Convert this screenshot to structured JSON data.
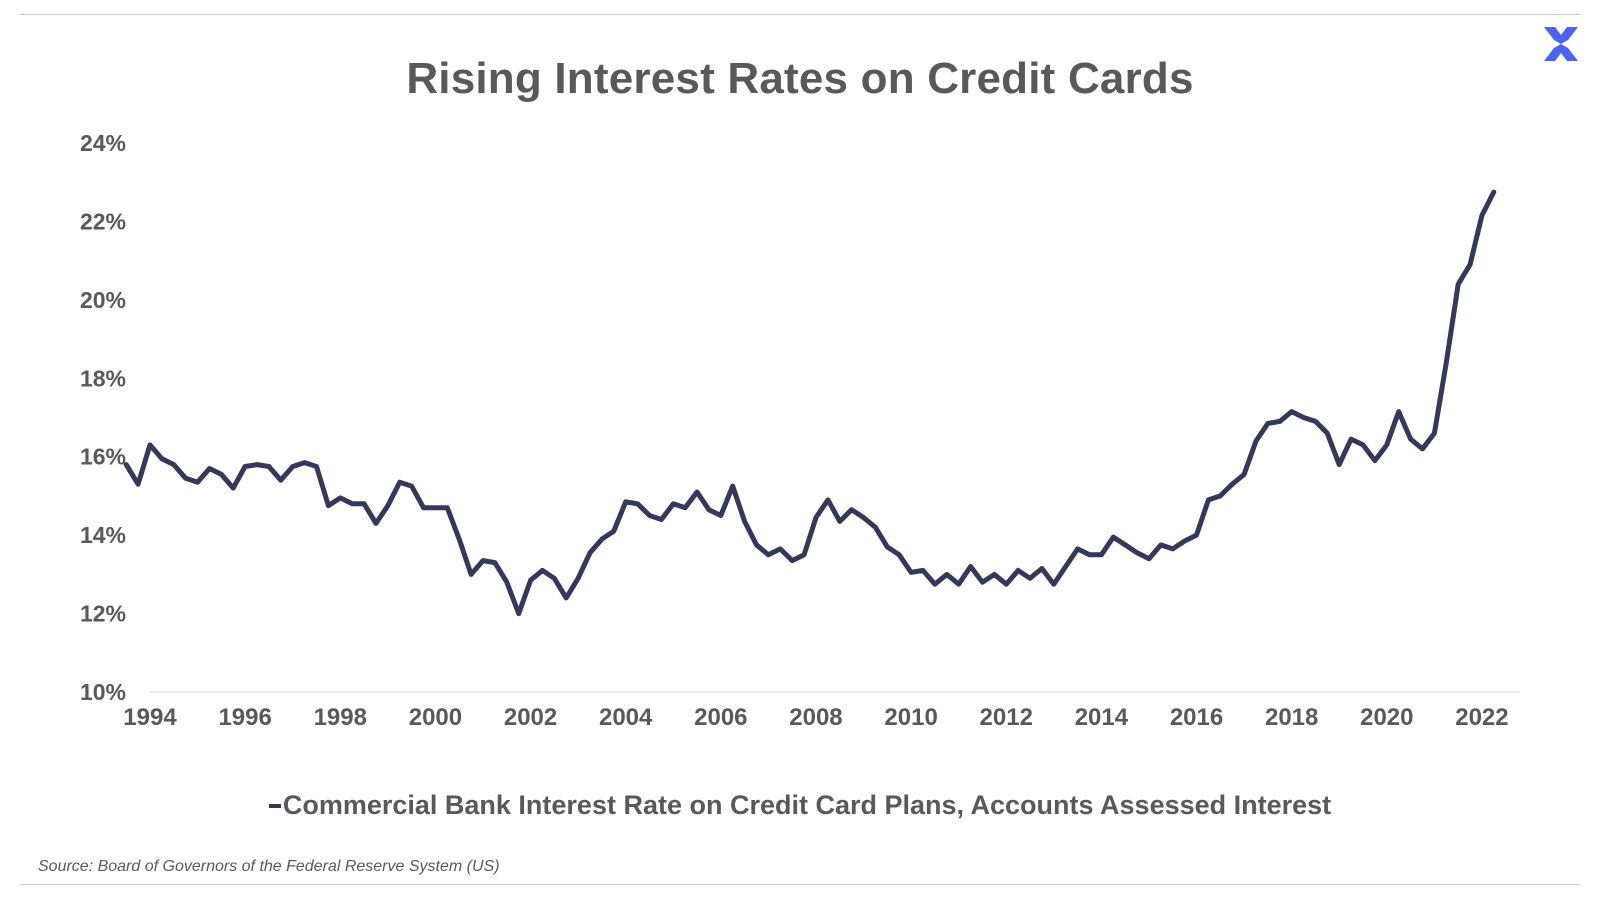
{
  "colors": {
    "line": "#33395a",
    "text": "#595959",
    "axis": "#d9d9d9",
    "brand": "#4a63f0"
  },
  "logo": {
    "icon": "brand-x-icon"
  },
  "chart_data": {
    "type": "line",
    "title": "Rising Interest Rates on Credit Cards",
    "xlabel": "",
    "ylabel": "",
    "ylim": [
      10,
      24
    ],
    "xlim": [
      1994,
      2022.8
    ],
    "y_ticks": [
      10,
      12,
      14,
      16,
      18,
      20,
      22,
      24
    ],
    "y_tick_labels": [
      "10%",
      "12%",
      "14%",
      "16%",
      "18%",
      "20%",
      "22%",
      "24%"
    ],
    "x_ticks": [
      1994,
      1996,
      1998,
      2000,
      2002,
      2004,
      2006,
      2008,
      2010,
      2012,
      2014,
      2016,
      2018,
      2020,
      2022
    ],
    "x_tick_labels": [
      "1994",
      "1996",
      "1998",
      "2000",
      "2002",
      "2004",
      "2006",
      "2008",
      "2010",
      "2012",
      "2014",
      "2016",
      "2018",
      "2020",
      "2022"
    ],
    "grid": false,
    "legend_position": "bottom-center",
    "series": [
      {
        "name": "Commercial Bank Interest Rate on Credit Card Plans, Accounts Assessed Interest",
        "points": [
          [
            1993.5,
            15.8
          ],
          [
            1993.75,
            15.3
          ],
          [
            1994.0,
            16.3
          ],
          [
            1994.25,
            15.95
          ],
          [
            1994.5,
            15.8
          ],
          [
            1994.75,
            15.45
          ],
          [
            1995.0,
            15.35
          ],
          [
            1995.25,
            15.7
          ],
          [
            1995.5,
            15.55
          ],
          [
            1995.75,
            15.2
          ],
          [
            1996.0,
            15.75
          ],
          [
            1996.25,
            15.8
          ],
          [
            1996.5,
            15.75
          ],
          [
            1996.75,
            15.4
          ],
          [
            1997.0,
            15.75
          ],
          [
            1997.25,
            15.85
          ],
          [
            1997.5,
            15.75
          ],
          [
            1997.75,
            14.75
          ],
          [
            1998.0,
            14.95
          ],
          [
            1998.25,
            14.8
          ],
          [
            1998.5,
            14.8
          ],
          [
            1998.75,
            14.3
          ],
          [
            1999.0,
            14.75
          ],
          [
            1999.25,
            15.35
          ],
          [
            1999.5,
            15.25
          ],
          [
            1999.75,
            14.7
          ],
          [
            2000.0,
            14.7
          ],
          [
            2000.25,
            14.7
          ],
          [
            2000.5,
            13.9
          ],
          [
            2000.75,
            13.0
          ],
          [
            2001.0,
            13.35
          ],
          [
            2001.25,
            13.3
          ],
          [
            2001.5,
            12.8
          ],
          [
            2001.75,
            12.0
          ],
          [
            2002.0,
            12.85
          ],
          [
            2002.25,
            13.1
          ],
          [
            2002.5,
            12.9
          ],
          [
            2002.75,
            12.4
          ],
          [
            2003.0,
            12.9
          ],
          [
            2003.25,
            13.55
          ],
          [
            2003.5,
            13.9
          ],
          [
            2003.75,
            14.1
          ],
          [
            2004.0,
            14.85
          ],
          [
            2004.25,
            14.8
          ],
          [
            2004.5,
            14.5
          ],
          [
            2004.75,
            14.4
          ],
          [
            2005.0,
            14.8
          ],
          [
            2005.25,
            14.7
          ],
          [
            2005.5,
            15.1
          ],
          [
            2005.75,
            14.65
          ],
          [
            2006.0,
            14.5
          ],
          [
            2006.25,
            15.25
          ],
          [
            2006.5,
            14.35
          ],
          [
            2006.75,
            13.75
          ],
          [
            2007.0,
            13.5
          ],
          [
            2007.25,
            13.65
          ],
          [
            2007.5,
            13.35
          ],
          [
            2007.75,
            13.5
          ],
          [
            2008.0,
            14.45
          ],
          [
            2008.25,
            14.9
          ],
          [
            2008.5,
            14.35
          ],
          [
            2008.75,
            14.65
          ],
          [
            2009.0,
            14.45
          ],
          [
            2009.25,
            14.2
          ],
          [
            2009.5,
            13.7
          ],
          [
            2009.75,
            13.5
          ],
          [
            2010.0,
            13.05
          ],
          [
            2010.25,
            13.1
          ],
          [
            2010.5,
            12.75
          ],
          [
            2010.75,
            13.0
          ],
          [
            2011.0,
            12.75
          ],
          [
            2011.25,
            13.2
          ],
          [
            2011.5,
            12.8
          ],
          [
            2011.75,
            13.0
          ],
          [
            2012.0,
            12.75
          ],
          [
            2012.25,
            13.1
          ],
          [
            2012.5,
            12.9
          ],
          [
            2012.75,
            13.15
          ],
          [
            2013.0,
            12.75
          ],
          [
            2013.25,
            13.2
          ],
          [
            2013.5,
            13.65
          ],
          [
            2013.75,
            13.5
          ],
          [
            2014.0,
            13.5
          ],
          [
            2014.25,
            13.95
          ],
          [
            2014.5,
            13.75
          ],
          [
            2014.75,
            13.55
          ],
          [
            2015.0,
            13.4
          ],
          [
            2015.25,
            13.75
          ],
          [
            2015.5,
            13.65
          ],
          [
            2015.75,
            13.85
          ],
          [
            2016.0,
            14.0
          ],
          [
            2016.25,
            14.9
          ],
          [
            2016.5,
            15.0
          ],
          [
            2016.75,
            15.3
          ],
          [
            2017.0,
            15.55
          ],
          [
            2017.25,
            16.4
          ],
          [
            2017.5,
            16.85
          ],
          [
            2017.75,
            16.9
          ],
          [
            2018.0,
            17.15
          ],
          [
            2018.25,
            17.0
          ],
          [
            2018.5,
            16.9
          ],
          [
            2018.75,
            16.6
          ],
          [
            2019.0,
            15.8
          ],
          [
            2019.25,
            16.45
          ],
          [
            2019.5,
            16.3
          ],
          [
            2019.75,
            15.9
          ],
          [
            2020.0,
            16.3
          ],
          [
            2020.25,
            17.15
          ],
          [
            2020.5,
            16.45
          ],
          [
            2020.75,
            16.2
          ],
          [
            2021.0,
            16.6
          ],
          [
            2021.25,
            18.4
          ],
          [
            2021.5,
            20.4
          ],
          [
            2021.75,
            20.9
          ],
          [
            2022.0,
            22.15
          ],
          [
            2022.25,
            22.75
          ]
        ]
      }
    ]
  },
  "source_note": "Source: Board of Governors of the Federal Reserve System (US)"
}
